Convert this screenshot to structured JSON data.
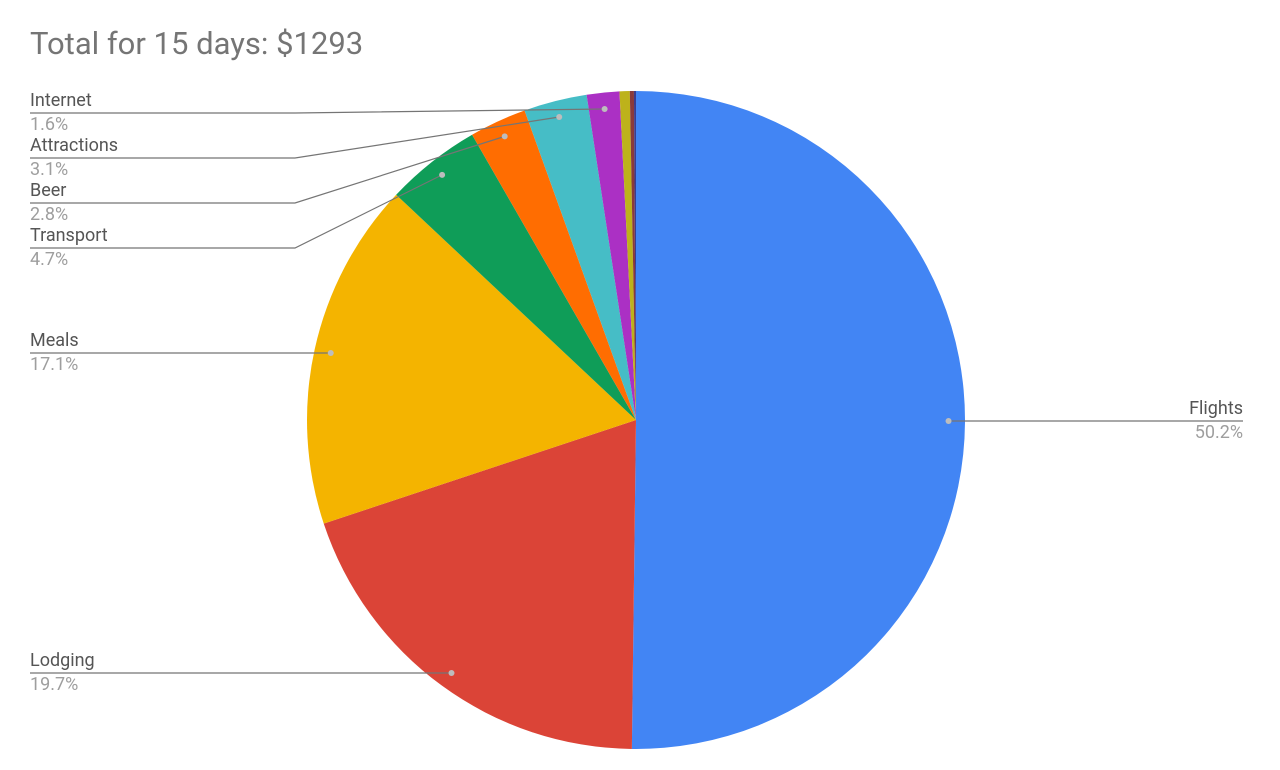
{
  "chart_data": {
    "type": "pie",
    "title": "Total for 15 days: $1293",
    "categories": [
      "Flights",
      "Lodging",
      "Meals",
      "Transport",
      "Beer",
      "Attractions",
      "Internet",
      null,
      null,
      null
    ],
    "values": [
      50.2,
      19.7,
      17.1,
      4.7,
      2.8,
      3.1,
      1.6,
      0.5,
      0.2,
      0.1
    ],
    "value_labels": [
      "50.2%",
      "19.7%",
      "17.1%",
      "4.7%",
      "2.8%",
      "3.1%",
      "1.6%",
      null,
      null,
      null
    ],
    "colors": [
      "#4285f4",
      "#db4437",
      "#f4b400",
      "#0f9d58",
      "#ff6d01",
      "#46bdc6",
      "#ab30c4",
      "#bdb21b",
      "#8a3a3a",
      "#3c3c8c"
    ]
  }
}
